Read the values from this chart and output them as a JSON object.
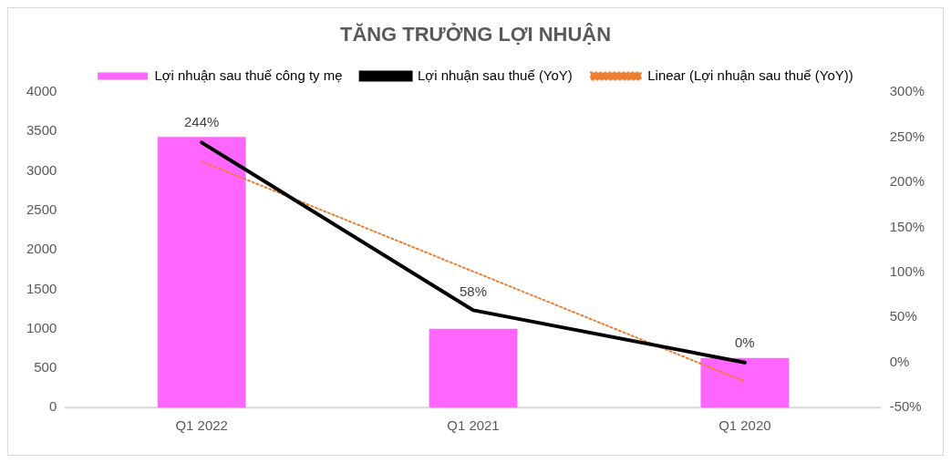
{
  "chart_data": {
    "type": "bar",
    "title": "TĂNG TRƯỞNG LỢI NHUẬN",
    "categories": [
      "Q1 2022",
      "Q1 2021",
      "Q1 2020"
    ],
    "series": [
      {
        "name": "Lợi nhuận sau thuế công ty mẹ",
        "color": "#ff66ff",
        "values": [
          3430,
          1000,
          630
        ]
      },
      {
        "name": "Lợi nhuận sau thuế (YoY)",
        "type": "line",
        "axis": "y2",
        "color": "#000000",
        "line_style": "solid",
        "values": [
          244,
          58,
          0
        ],
        "value_labels": [
          "244%",
          "58%",
          "0%"
        ]
      },
      {
        "name": "Linear (Lợi nhuận sau thuế (YoY))",
        "type": "line",
        "axis": "y2",
        "color": "#ed7d31",
        "line_style": "dotted",
        "values": [
          223,
          101,
          -21
        ]
      }
    ],
    "ylim": [
      0,
      4000
    ],
    "yticks": [
      0,
      500,
      1000,
      1500,
      2000,
      2500,
      3000,
      3500,
      4000
    ],
    "y2lim": [
      -50,
      300
    ],
    "y2ticks": [
      {
        "value": -50,
        "label": "-50%"
      },
      {
        "value": 0,
        "label": "0%"
      },
      {
        "value": 50,
        "label": "50%"
      },
      {
        "value": 100,
        "label": "100%"
      },
      {
        "value": 150,
        "label": "150%"
      },
      {
        "value": 200,
        "label": "200%"
      },
      {
        "value": 250,
        "label": "250%"
      },
      {
        "value": 300,
        "label": "300%"
      }
    ],
    "grid": false,
    "legend": "top",
    "marker": "none"
  }
}
